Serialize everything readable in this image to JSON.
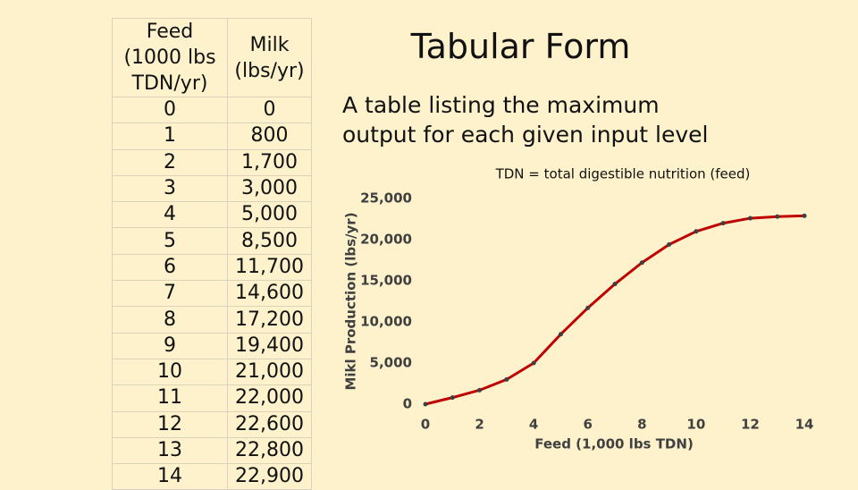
{
  "title": "Tabular Form",
  "description": "A table listing the maximum output for each given input level",
  "table": {
    "header": [
      "Feed (1000 lbs TDN/yr)",
      "Milk (lbs/yr)"
    ],
    "rows": [
      [
        "0",
        "0"
      ],
      [
        "1",
        "800"
      ],
      [
        "2",
        "1,700"
      ],
      [
        "3",
        "3,000"
      ],
      [
        "4",
        "5,000"
      ],
      [
        "5",
        "8,500"
      ],
      [
        "6",
        "11,700"
      ],
      [
        "7",
        "14,600"
      ],
      [
        "8",
        "17,200"
      ],
      [
        "9",
        "19,400"
      ],
      [
        "10",
        "21,000"
      ],
      [
        "11",
        "22,000"
      ],
      [
        "12",
        "22,600"
      ],
      [
        "13",
        "22,800"
      ],
      [
        "14",
        "22,900"
      ]
    ]
  },
  "chart_data": {
    "type": "line",
    "title": "TDN = total digestible nutrition (feed)",
    "x_label": "Feed (1,000 lbs TDN)",
    "y_label": "Mikl Production (lbs/yr)",
    "x": [
      0,
      1,
      2,
      3,
      4,
      5,
      6,
      7,
      8,
      9,
      10,
      11,
      12,
      13,
      14
    ],
    "series": [
      {
        "name": "Milk (lbs/yr)",
        "color": "#c00000",
        "marker_color": "#404040",
        "values": [
          0,
          800,
          1700,
          3000,
          5000,
          8500,
          11700,
          14600,
          17200,
          19400,
          21000,
          22000,
          22600,
          22800,
          22900
        ]
      }
    ],
    "xlim": [
      0,
      14
    ],
    "xticks": [
      0,
      2,
      4,
      6,
      8,
      10,
      12,
      14
    ],
    "ylim": [
      0,
      25000
    ],
    "yticks": [
      0,
      {
        "value": 5000,
        "label": "5,000"
      },
      {
        "value": 10000,
        "label": "10,000"
      },
      {
        "value": 15000,
        "label": "15,000"
      },
      {
        "value": 20000,
        "label": "20,000"
      },
      {
        "value": 25000,
        "label": "25,000"
      }
    ],
    "grid": false,
    "legend": false
  }
}
